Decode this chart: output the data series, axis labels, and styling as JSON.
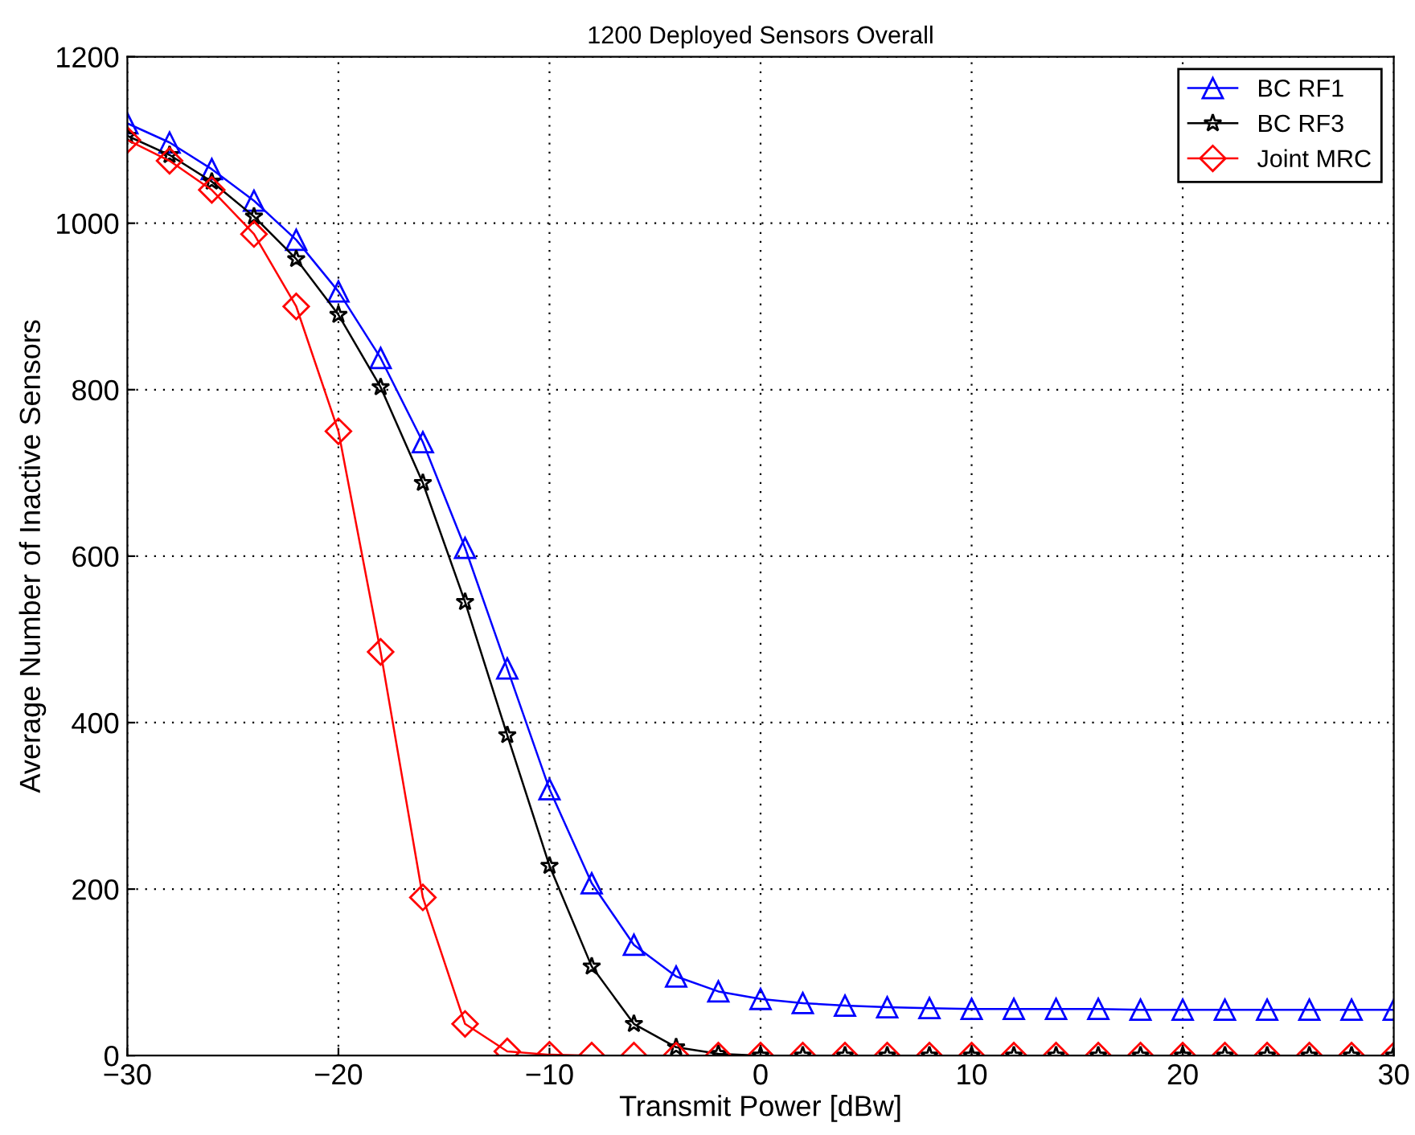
{
  "chart_data": {
    "type": "line",
    "title": "1200 Deployed Sensors Overall",
    "xlabel": "Transmit Power [dBw]",
    "ylabel": "Average Number of Inactive Sensors",
    "x": [
      -30,
      -28,
      -26,
      -24,
      -22,
      -20,
      -18,
      -16,
      -14,
      -12,
      -10,
      -8,
      -6,
      -4,
      -2,
      0,
      2,
      4,
      6,
      8,
      10,
      12,
      14,
      16,
      18,
      20,
      22,
      24,
      26,
      28,
      30
    ],
    "series": [
      {
        "name": "BC RF1",
        "color": "#0000ff",
        "marker": "triangle",
        "values": [
          1120,
          1097,
          1065,
          1027,
          980,
          918,
          838,
          737,
          610,
          465,
          320,
          207,
          133,
          95,
          77,
          68,
          63,
          60,
          58,
          57,
          56,
          56,
          56,
          56,
          55,
          55,
          55,
          55,
          55,
          55,
          55
        ]
      },
      {
        "name": "BC RF3",
        "color": "#000000",
        "marker": "star",
        "values": [
          1105,
          1082,
          1050,
          1008,
          957,
          890,
          803,
          688,
          545,
          385,
          228,
          107,
          38,
          10,
          2,
          0,
          0,
          0,
          0,
          0,
          0,
          0,
          0,
          0,
          0,
          0,
          0,
          0,
          0,
          0,
          0
        ]
      },
      {
        "name": "Joint MRC",
        "color": "#ff0000",
        "marker": "diamond",
        "values": [
          1100,
          1075,
          1040,
          987,
          900,
          750,
          485,
          190,
          38,
          5,
          1,
          0,
          0,
          0,
          0,
          0,
          0,
          0,
          0,
          0,
          0,
          0,
          0,
          0,
          0,
          0,
          0,
          0,
          0,
          0,
          0
        ]
      }
    ],
    "xlim": [
      -30,
      30
    ],
    "xticks": [
      {
        "value": -30,
        "label": "−30"
      },
      {
        "value": -20,
        "label": "−20"
      },
      {
        "value": -10,
        "label": "−10"
      },
      0,
      10,
      20,
      30
    ],
    "ylim": [
      0,
      1200
    ],
    "yticks": [
      0,
      200,
      400,
      600,
      800,
      1000,
      1200
    ],
    "grid": true,
    "legend": "top right",
    "line_style": "solid"
  }
}
